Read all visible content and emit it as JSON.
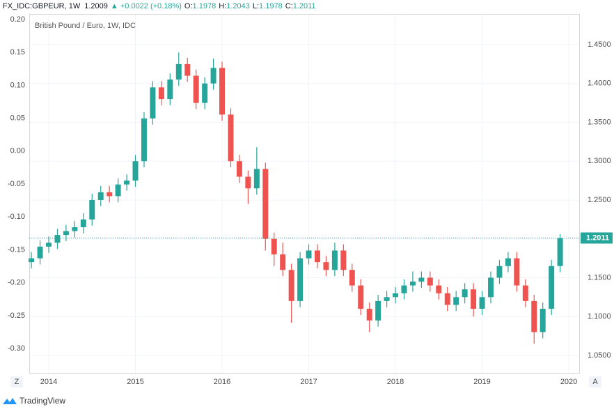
{
  "header": {
    "symbol": "FX_IDC:GBPEUR, 1W",
    "price": "1.2009",
    "change": "▲ +0.0022 (+0.18%)",
    "ohlc": [
      {
        "label": "O:",
        "value": "1.1978"
      },
      {
        "label": "H:",
        "value": "1.2043"
      },
      {
        "label": "L:",
        "value": "1.1978"
      },
      {
        "label": "C:",
        "value": "1.2011"
      }
    ]
  },
  "footer": {
    "logo": "TradingView",
    "left_button": "Z",
    "right_button": "A"
  },
  "chart_data": {
    "type": "candlestick",
    "title": "British Pound / Euro, 1W, IDC",
    "up_color": "#26a69a",
    "down_color": "#ef5350",
    "grid": true,
    "x": [
      2013.8,
      2013.9,
      2014.0,
      2014.1,
      2014.2,
      2014.3,
      2014.4,
      2014.5,
      2014.6,
      2014.7,
      2014.8,
      2014.9,
      2015.0,
      2015.1,
      2015.2,
      2015.3,
      2015.4,
      2015.5,
      2015.6,
      2015.7,
      2015.8,
      2015.9,
      2016.0,
      2016.1,
      2016.2,
      2016.3,
      2016.4,
      2016.5,
      2016.6,
      2016.7,
      2016.8,
      2016.9,
      2017.0,
      2017.1,
      2017.2,
      2017.3,
      2017.4,
      2017.5,
      2017.6,
      2017.7,
      2017.8,
      2017.9,
      2018.0,
      2018.1,
      2018.2,
      2018.3,
      2018.4,
      2018.5,
      2018.6,
      2018.7,
      2018.8,
      2018.9,
      2019.0,
      2019.1,
      2019.2,
      2019.3,
      2019.4,
      2019.5,
      2019.6,
      2019.7,
      2019.8,
      2019.9
    ],
    "open": [
      1.17,
      1.175,
      1.19,
      1.195,
      1.205,
      1.21,
      1.215,
      1.225,
      1.25,
      1.26,
      1.255,
      1.27,
      1.275,
      1.3,
      1.355,
      1.395,
      1.38,
      1.405,
      1.425,
      1.41,
      1.375,
      1.4,
      1.42,
      1.36,
      1.3,
      1.28,
      1.265,
      1.29,
      1.2,
      1.18,
      1.16,
      1.12,
      1.175,
      1.185,
      1.17,
      1.16,
      1.185,
      1.16,
      1.14,
      1.11,
      1.095,
      1.12,
      1.125,
      1.13,
      1.14,
      1.145,
      1.15,
      1.14,
      1.13,
      1.115,
      1.125,
      1.135,
      1.11,
      1.125,
      1.15,
      1.165,
      1.175,
      1.14,
      1.12,
      1.08,
      1.11,
      1.165
    ],
    "high": [
      1.183,
      1.198,
      1.203,
      1.213,
      1.218,
      1.223,
      1.233,
      1.258,
      1.268,
      1.268,
      1.278,
      1.283,
      1.308,
      1.363,
      1.403,
      1.403,
      1.413,
      1.44,
      1.433,
      1.418,
      1.408,
      1.432,
      1.428,
      1.368,
      1.308,
      1.288,
      1.318,
      1.298,
      1.208,
      1.195,
      1.168,
      1.183,
      1.193,
      1.193,
      1.178,
      1.195,
      1.193,
      1.168,
      1.148,
      1.118,
      1.128,
      1.133,
      1.138,
      1.148,
      1.158,
      1.158,
      1.158,
      1.148,
      1.138,
      1.133,
      1.143,
      1.143,
      1.133,
      1.158,
      1.173,
      1.183,
      1.183,
      1.148,
      1.128,
      1.118,
      1.173,
      1.206
    ],
    "low": [
      1.162,
      1.167,
      1.182,
      1.187,
      1.197,
      1.202,
      1.207,
      1.217,
      1.242,
      1.247,
      1.247,
      1.262,
      1.267,
      1.292,
      1.347,
      1.372,
      1.372,
      1.397,
      1.402,
      1.367,
      1.367,
      1.392,
      1.352,
      1.292,
      1.272,
      1.245,
      1.257,
      1.185,
      1.165,
      1.152,
      1.092,
      1.112,
      1.167,
      1.162,
      1.152,
      1.152,
      1.152,
      1.132,
      1.102,
      1.08,
      1.087,
      1.112,
      1.117,
      1.122,
      1.132,
      1.137,
      1.132,
      1.122,
      1.107,
      1.107,
      1.117,
      1.1,
      1.102,
      1.117,
      1.142,
      1.157,
      1.132,
      1.112,
      1.065,
      1.072,
      1.102,
      1.157
    ],
    "close": [
      1.175,
      1.19,
      1.195,
      1.205,
      1.21,
      1.215,
      1.225,
      1.25,
      1.26,
      1.255,
      1.27,
      1.275,
      1.3,
      1.355,
      1.395,
      1.38,
      1.405,
      1.425,
      1.41,
      1.375,
      1.4,
      1.42,
      1.36,
      1.3,
      1.28,
      1.265,
      1.29,
      1.2,
      1.18,
      1.16,
      1.12,
      1.175,
      1.185,
      1.17,
      1.16,
      1.185,
      1.16,
      1.14,
      1.11,
      1.095,
      1.12,
      1.125,
      1.13,
      1.14,
      1.145,
      1.15,
      1.14,
      1.13,
      1.115,
      1.125,
      1.135,
      1.11,
      1.125,
      1.15,
      1.165,
      1.175,
      1.14,
      1.12,
      1.08,
      1.11,
      1.165,
      1.2011
    ],
    "last_price": {
      "value": 1.2011,
      "label": "1.2011"
    },
    "xlim": [
      2013.775,
      2020.12
    ],
    "xticks": [
      2014,
      2015,
      2016,
      2017,
      2018,
      2019,
      2020
    ],
    "ylim": [
      1.0275,
      1.4895
    ],
    "yticks": [
      {
        "value": 1.05,
        "label": "1.0500"
      },
      {
        "value": 1.1,
        "label": "1.1000"
      },
      {
        "value": 1.15,
        "label": "1.1500"
      },
      {
        "value": 1.2,
        "label": "1.2000"
      },
      {
        "value": 1.25,
        "label": "1.2500"
      },
      {
        "value": 1.3,
        "label": "1.3000"
      },
      {
        "value": 1.35,
        "label": "1.3500"
      },
      {
        "value": 1.4,
        "label": "1.4000"
      },
      {
        "value": 1.45,
        "label": "1.4500"
      }
    ],
    "y2_position": "left",
    "y2lim": [
      -0.337,
      0.2085
    ],
    "y2ticks": [
      {
        "value": 0.2,
        "label": "0.20"
      },
      0.15,
      {
        "value": 0.1,
        "label": "0.10"
      },
      0.05,
      {
        "value": 0,
        "label": "0.00"
      },
      -0.05,
      {
        "value": -0.1,
        "label": "-0.10"
      },
      -0.15,
      {
        "value": -0.2,
        "label": "-0.20"
      },
      -0.25,
      {
        "value": -0.3,
        "label": "-0.30"
      }
    ]
  }
}
